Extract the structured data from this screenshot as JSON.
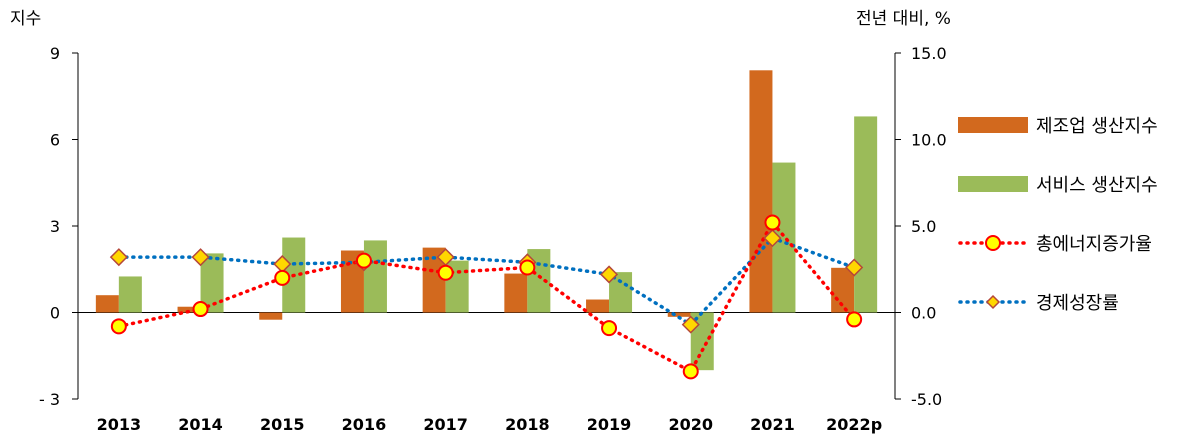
{
  "chart_data": {
    "type": "bar",
    "left_axis_title": "지수",
    "right_axis_title": "전년 대비, %",
    "categories": [
      "2013",
      "2014",
      "2015",
      "2016",
      "2017",
      "2018",
      "2019",
      "2020",
      "2021",
      "2022p"
    ],
    "left_ticks": [
      "9",
      "6",
      "3",
      "0",
      "- 3"
    ],
    "right_ticks": [
      "15.0",
      "10.0",
      "5.0",
      "0.0",
      "-5.0"
    ],
    "left_ylim": [
      -3,
      9
    ],
    "right_ylim": [
      -5,
      15
    ],
    "grid": false,
    "legend_position": "right",
    "series": [
      {
        "name": "제조업 생산지수",
        "type": "bar",
        "axis": "left",
        "color": "#D2691E",
        "values": [
          0.6,
          0.2,
          -0.25,
          2.15,
          2.25,
          1.35,
          0.45,
          -0.15,
          8.4,
          1.55
        ]
      },
      {
        "name": "서비스 생산지수",
        "type": "bar",
        "axis": "left",
        "color": "#9BBB59",
        "values": [
          1.25,
          2.05,
          2.6,
          2.5,
          1.8,
          2.2,
          1.4,
          -2.0,
          5.2,
          6.8
        ]
      },
      {
        "name": "총에너지증가율",
        "type": "line",
        "axis": "right",
        "color": "#FF0000",
        "marker": "circle",
        "marker_fill": "#FFFF00",
        "values": [
          -0.8,
          0.2,
          2.0,
          3.0,
          2.3,
          2.6,
          -0.9,
          -3.4,
          5.2,
          -0.4
        ]
      },
      {
        "name": "경제성장률",
        "type": "line",
        "axis": "right",
        "color": "#0070C0",
        "marker": "diamond",
        "marker_fill": "#FFD700",
        "values": [
          3.2,
          3.2,
          2.8,
          2.9,
          3.2,
          2.9,
          2.2,
          -0.7,
          4.3,
          2.6
        ]
      }
    ]
  }
}
